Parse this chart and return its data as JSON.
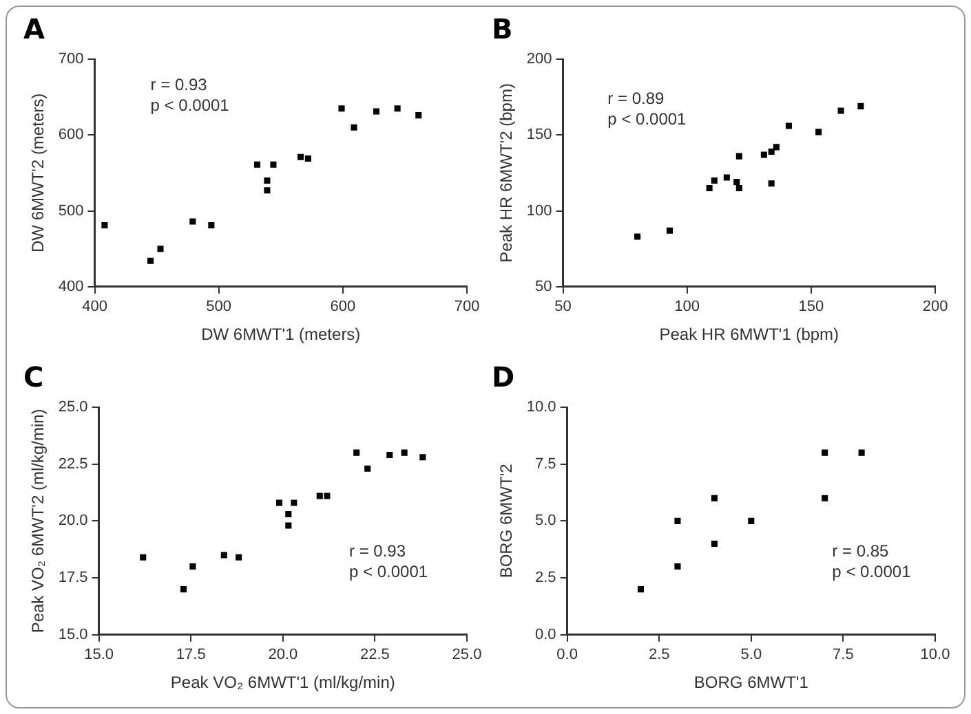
{
  "chart_data": [
    {
      "type": "scatter",
      "title": "A",
      "xlabel": "DW 6MWT'1 (meters)",
      "ylabel": "DW 6MWT'2 (meters)",
      "annotations": [
        "r = 0.93",
        "p < 0.0001"
      ],
      "marker": "square",
      "color": "#000000",
      "x": [
        408,
        445,
        453,
        479,
        494,
        531,
        544,
        539,
        539,
        566,
        572,
        599,
        609,
        627,
        644,
        661
      ],
      "values": [
        481,
        434,
        450,
        486,
        481,
        561,
        561,
        540,
        527,
        571,
        569,
        635,
        610,
        631,
        635,
        626
      ],
      "xlim": [
        400,
        700
      ],
      "xticks": [
        400,
        500,
        600,
        700
      ],
      "ylim": [
        400,
        700
      ],
      "yticks": [
        400,
        500,
        600,
        700
      ]
    },
    {
      "type": "scatter",
      "title": "B",
      "xlabel": "Peak HR 6MWT'1 (bpm)",
      "ylabel": "Peak HR 6MWT'2 (bpm)",
      "annotations": [
        "r = 0.89",
        "p < 0.0001"
      ],
      "marker": "square",
      "color": "#000000",
      "x": [
        80,
        93,
        109,
        111,
        116,
        120,
        121,
        121,
        131,
        134,
        134,
        136,
        141,
        153,
        162,
        170
      ],
      "values": [
        83,
        87,
        115,
        120,
        122,
        119,
        115,
        136,
        137,
        139,
        118,
        142,
        156,
        152,
        166,
        169
      ],
      "xlim": [
        50,
        200
      ],
      "xticks": [
        50,
        100,
        150,
        200
      ],
      "ylim": [
        50,
        200
      ],
      "yticks": [
        50,
        100,
        150,
        200
      ]
    },
    {
      "type": "scatter",
      "title": "C",
      "xlabel": "Peak VO₂ 6MWT'1 (ml/kg/min)",
      "ylabel": "Peak VO₂ 6MWT'2 (ml/kg/min)",
      "annotations": [
        "r = 0.93",
        "p < 0.0001"
      ],
      "marker": "square",
      "color": "#000000",
      "x": [
        16.2,
        17.3,
        17.55,
        18.4,
        18.8,
        19.9,
        20.3,
        20.15,
        20.15,
        21.0,
        21.2,
        22.0,
        22.3,
        22.9,
        23.3,
        23.8
      ],
      "values": [
        18.4,
        17.0,
        18.0,
        18.5,
        18.4,
        20.8,
        20.8,
        20.3,
        19.8,
        21.1,
        21.1,
        23.0,
        22.3,
        22.9,
        23.0,
        22.8
      ],
      "xlim": [
        15,
        25
      ],
      "xticks": [
        {
          "value": 15,
          "label": "15.0"
        },
        {
          "value": 17.5,
          "label": "17.5"
        },
        {
          "value": 20,
          "label": "20.0"
        },
        {
          "value": 22.5,
          "label": "22.5"
        },
        {
          "value": 25,
          "label": "25.0"
        }
      ],
      "ylim": [
        15,
        25
      ],
      "yticks": [
        {
          "value": 15,
          "label": "15.0"
        },
        {
          "value": 17.5,
          "label": "17.5"
        },
        {
          "value": 20,
          "label": "20.0"
        },
        {
          "value": 22.5,
          "label": "22.5"
        },
        {
          "value": 25,
          "label": "25.0"
        }
      ]
    },
    {
      "type": "scatter",
      "title": "D",
      "xlabel": "BORG 6MWT'1",
      "ylabel": "BORG 6MWT'2",
      "annotations": [
        "r = 0.85",
        "p < 0.0001"
      ],
      "marker": "square",
      "color": "#000000",
      "x": [
        2,
        3,
        3,
        4,
        4,
        5,
        7,
        7,
        8
      ],
      "values": [
        2,
        3,
        5,
        4,
        6,
        5,
        8,
        6,
        8
      ],
      "xlim": [
        0,
        10
      ],
      "xticks": [
        {
          "value": 0,
          "label": "0.0"
        },
        {
          "value": 2.5,
          "label": "2.5"
        },
        {
          "value": 5,
          "label": "5.0"
        },
        {
          "value": 7.5,
          "label": "7.5"
        },
        {
          "value": 10,
          "label": "10.0"
        }
      ],
      "ylim": [
        0,
        10
      ],
      "yticks": [
        {
          "value": 0,
          "label": "0.0"
        },
        {
          "value": 2.5,
          "label": "2.5"
        },
        {
          "value": 5,
          "label": "5.0"
        },
        {
          "value": 7.5,
          "label": "7.5"
        },
        {
          "value": 10,
          "label": "10.0"
        }
      ]
    }
  ]
}
